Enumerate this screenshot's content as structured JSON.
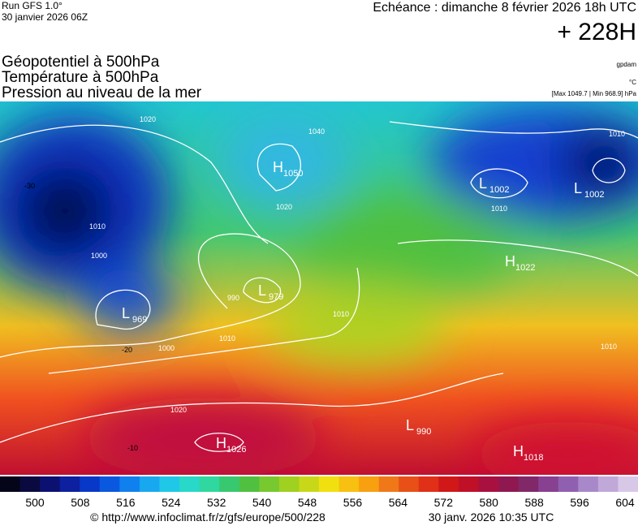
{
  "header": {
    "run": "Run GFS 1.0°",
    "date": "30 janvier 2026 06Z",
    "echeance": "Echéance : dimanche 8 février 2026 18h UTC",
    "lead": "+ 228H"
  },
  "titles": [
    "Géopotentiel à 500hPa",
    "Température à 500hPa",
    "Pression au niveau de la mer"
  ],
  "units": {
    "geopotential": "gpdam",
    "temperature": "°C",
    "pressure": "[Max 1049.7 | Min 968.9] hPa"
  },
  "centers": [
    {
      "letter": "H",
      "value": "1050"
    },
    {
      "letter": "L",
      "value": "1002"
    },
    {
      "letter": "L",
      "value": "1002"
    },
    {
      "letter": "H",
      "value": "1022"
    },
    {
      "letter": "L",
      "value": "979"
    },
    {
      "letter": "L",
      "value": "969"
    },
    {
      "letter": "H",
      "value": "1026"
    },
    {
      "letter": "L",
      "value": "990"
    },
    {
      "letter": "H",
      "value": "1018"
    }
  ],
  "isobar_labels": [
    "1020",
    "1010",
    "1000",
    "990",
    "1010",
    "1010",
    "1000",
    "1010",
    "1020",
    "1010",
    "1010",
    "1040",
    "1020"
  ],
  "temperature_labels": [
    "-30",
    "-20",
    "-10"
  ],
  "colorbar": [
    "500",
    "508",
    "516",
    "524",
    "532",
    "540",
    "548",
    "556",
    "564",
    "572",
    "580",
    "588",
    "596",
    "604"
  ],
  "footer": {
    "url": "© http://www.infoclimat.fr/z/gfs/europe/500/228",
    "timestamp": "30 janv. 2026 10:35 UTC"
  }
}
